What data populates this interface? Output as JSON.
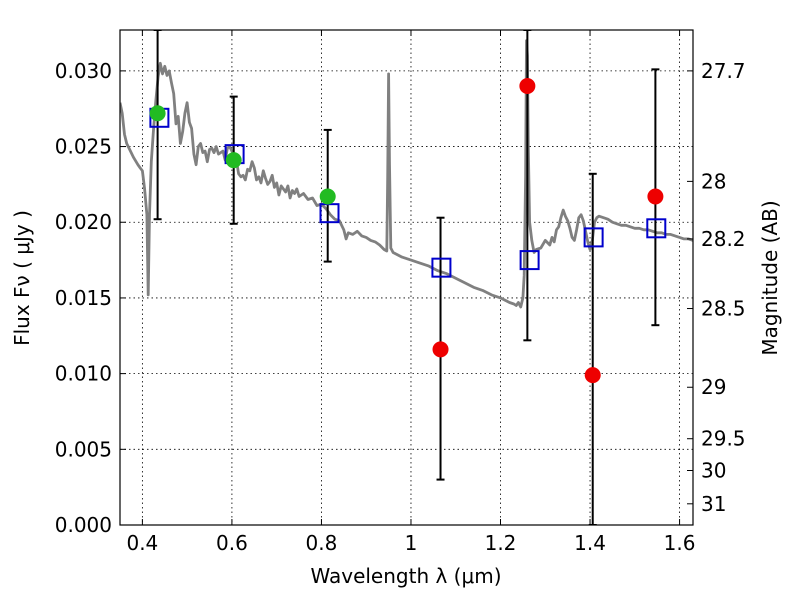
{
  "chart_data": {
    "type": "scatter",
    "title": "",
    "xlabel": "Wavelength  λ (μm)",
    "ylabel": "Flux  Fν  ( μJy )",
    "ylabel_right": "Magnitude (AB)",
    "xlim": [
      0.35,
      1.63
    ],
    "ylim": [
      0.0,
      0.0327
    ],
    "grid": true,
    "x_ticks": [
      0.4,
      0.6,
      0.8,
      1.0,
      1.2,
      1.4,
      1.6
    ],
    "x_tick_labels": [
      "0.4",
      "0.6",
      "0.8",
      "1",
      "1.2",
      "1.4",
      "1.6"
    ],
    "y_ticks": [
      0.0,
      0.005,
      0.01,
      0.015,
      0.02,
      0.025,
      0.03
    ],
    "y_tick_labels": [
      "0.000",
      "0.005",
      "0.010",
      "0.015",
      "0.020",
      "0.025",
      "0.030"
    ],
    "right_ticks": [
      {
        "label": "27.7",
        "flux": 0.03
      },
      {
        "label": "28",
        "flux": 0.0227
      },
      {
        "label": "28.2",
        "flux": 0.0189
      },
      {
        "label": "28.5",
        "flux": 0.0143
      },
      {
        "label": "29",
        "flux": 0.0091
      },
      {
        "label": "29.5",
        "flux": 0.0057
      },
      {
        "label": "30",
        "flux": 0.0036
      },
      {
        "label": "31",
        "flux": 0.0014
      }
    ],
    "series": [
      {
        "kind": "spectrum",
        "color": "#808080",
        "points": [
          [
            0.35,
            0.0279
          ],
          [
            0.355,
            0.0272
          ],
          [
            0.36,
            0.0258
          ],
          [
            0.365,
            0.0252
          ],
          [
            0.37,
            0.0249
          ],
          [
            0.38,
            0.0243
          ],
          [
            0.39,
            0.0238
          ],
          [
            0.395,
            0.0236
          ],
          [
            0.4,
            0.0234
          ],
          [
            0.405,
            0.0222
          ],
          [
            0.41,
            0.0205
          ],
          [
            0.413,
            0.0152
          ],
          [
            0.416,
            0.0205
          ],
          [
            0.42,
            0.024
          ],
          [
            0.425,
            0.0262
          ],
          [
            0.43,
            0.028
          ],
          [
            0.435,
            0.0296
          ],
          [
            0.44,
            0.0305
          ],
          [
            0.445,
            0.0298
          ],
          [
            0.45,
            0.0303
          ],
          [
            0.455,
            0.0297
          ],
          [
            0.46,
            0.03
          ],
          [
            0.465,
            0.0292
          ],
          [
            0.47,
            0.0285
          ],
          [
            0.475,
            0.0265
          ],
          [
            0.48,
            0.027
          ],
          [
            0.485,
            0.0252
          ],
          [
            0.49,
            0.026
          ],
          [
            0.495,
            0.0272
          ],
          [
            0.5,
            0.0279
          ],
          [
            0.505,
            0.0266
          ],
          [
            0.51,
            0.0262
          ],
          [
            0.515,
            0.0245
          ],
          [
            0.52,
            0.0238
          ],
          [
            0.525,
            0.025
          ],
          [
            0.53,
            0.0252
          ],
          [
            0.535,
            0.0246
          ],
          [
            0.54,
            0.0247
          ],
          [
            0.545,
            0.024
          ],
          [
            0.55,
            0.0248
          ],
          [
            0.555,
            0.0249
          ],
          [
            0.56,
            0.0246
          ],
          [
            0.565,
            0.025
          ],
          [
            0.57,
            0.0245
          ],
          [
            0.575,
            0.0246
          ],
          [
            0.58,
            0.0247
          ],
          [
            0.585,
            0.0241
          ],
          [
            0.59,
            0.0249
          ],
          [
            0.595,
            0.025
          ],
          [
            0.6,
            0.0247
          ],
          [
            0.605,
            0.0245
          ],
          [
            0.61,
            0.0241
          ],
          [
            0.615,
            0.0232
          ],
          [
            0.62,
            0.023
          ],
          [
            0.625,
            0.0231
          ],
          [
            0.63,
            0.0228
          ],
          [
            0.635,
            0.0235
          ],
          [
            0.64,
            0.0234
          ],
          [
            0.645,
            0.024
          ],
          [
            0.65,
            0.0236
          ],
          [
            0.655,
            0.0228
          ],
          [
            0.66,
            0.023
          ],
          [
            0.665,
            0.0226
          ],
          [
            0.67,
            0.0234
          ],
          [
            0.675,
            0.0229
          ],
          [
            0.68,
            0.0225
          ],
          [
            0.685,
            0.0227
          ],
          [
            0.69,
            0.0231
          ],
          [
            0.695,
            0.0223
          ],
          [
            0.7,
            0.0226
          ],
          [
            0.705,
            0.0218
          ],
          [
            0.71,
            0.0224
          ],
          [
            0.715,
            0.0222
          ],
          [
            0.72,
            0.022
          ],
          [
            0.725,
            0.0224
          ],
          [
            0.73,
            0.0216
          ],
          [
            0.735,
            0.0221
          ],
          [
            0.74,
            0.0219
          ],
          [
            0.745,
            0.0222
          ],
          [
            0.75,
            0.0217
          ],
          [
            0.76,
            0.0219
          ],
          [
            0.77,
            0.0215
          ],
          [
            0.78,
            0.0216
          ],
          [
            0.79,
            0.0211
          ],
          [
            0.8,
            0.0212
          ],
          [
            0.81,
            0.0209
          ],
          [
            0.82,
            0.0205
          ],
          [
            0.83,
            0.0202
          ],
          [
            0.84,
            0.0201
          ],
          [
            0.85,
            0.0195
          ],
          [
            0.855,
            0.0189
          ],
          [
            0.86,
            0.0193
          ],
          [
            0.87,
            0.0192
          ],
          [
            0.88,
            0.0194
          ],
          [
            0.89,
            0.0191
          ],
          [
            0.9,
            0.019
          ],
          [
            0.91,
            0.0188
          ],
          [
            0.92,
            0.0187
          ],
          [
            0.93,
            0.0185
          ],
          [
            0.94,
            0.0182
          ],
          [
            0.946,
            0.0181
          ],
          [
            0.948,
            0.023
          ],
          [
            0.95,
            0.0298
          ],
          [
            0.952,
            0.0238
          ],
          [
            0.955,
            0.0183
          ],
          [
            0.96,
            0.018
          ],
          [
            0.98,
            0.0177
          ],
          [
            1.0,
            0.0175
          ],
          [
            1.02,
            0.0173
          ],
          [
            1.04,
            0.0171
          ],
          [
            1.06,
            0.0168
          ],
          [
            1.08,
            0.0166
          ],
          [
            1.1,
            0.0163
          ],
          [
            1.12,
            0.016
          ],
          [
            1.14,
            0.0157
          ],
          [
            1.16,
            0.0155
          ],
          [
            1.18,
            0.0152
          ],
          [
            1.2,
            0.015
          ],
          [
            1.22,
            0.0147
          ],
          [
            1.23,
            0.0146
          ],
          [
            1.235,
            0.0145
          ],
          [
            1.24,
            0.0147
          ],
          [
            1.245,
            0.0144
          ],
          [
            1.25,
            0.015
          ],
          [
            1.253,
            0.0165
          ],
          [
            1.256,
            0.023
          ],
          [
            1.258,
            0.032
          ],
          [
            1.26,
            0.031
          ],
          [
            1.262,
            0.025
          ],
          [
            1.265,
            0.02
          ],
          [
            1.27,
            0.0188
          ],
          [
            1.275,
            0.018
          ],
          [
            1.28,
            0.0182
          ],
          [
            1.29,
            0.0183
          ],
          [
            1.3,
            0.0188
          ],
          [
            1.31,
            0.0185
          ],
          [
            1.315,
            0.019
          ],
          [
            1.32,
            0.0187
          ],
          [
            1.325,
            0.0195
          ],
          [
            1.33,
            0.0197
          ],
          [
            1.335,
            0.0203
          ],
          [
            1.34,
            0.0208
          ],
          [
            1.345,
            0.0204
          ],
          [
            1.35,
            0.0201
          ],
          [
            1.355,
            0.0196
          ],
          [
            1.36,
            0.019
          ],
          [
            1.365,
            0.0188
          ],
          [
            1.37,
            0.0195
          ],
          [
            1.375,
            0.0203
          ],
          [
            1.38,
            0.0205
          ],
          [
            1.385,
            0.0201
          ],
          [
            1.39,
            0.0194
          ],
          [
            1.395,
            0.0187
          ],
          [
            1.4,
            0.0182
          ],
          [
            1.405,
            0.0188
          ],
          [
            1.41,
            0.02
          ],
          [
            1.415,
            0.0203
          ],
          [
            1.42,
            0.0204
          ],
          [
            1.43,
            0.0203
          ],
          [
            1.44,
            0.0202
          ],
          [
            1.45,
            0.02
          ],
          [
            1.46,
            0.0199
          ],
          [
            1.47,
            0.0198
          ],
          [
            1.48,
            0.0198
          ],
          [
            1.49,
            0.0197
          ],
          [
            1.5,
            0.0196
          ],
          [
            1.51,
            0.0196
          ],
          [
            1.52,
            0.0195
          ],
          [
            1.53,
            0.0195
          ],
          [
            1.54,
            0.0194
          ],
          [
            1.55,
            0.0193
          ],
          [
            1.56,
            0.0193
          ],
          [
            1.57,
            0.0192
          ],
          [
            1.58,
            0.0192
          ],
          [
            1.59,
            0.0191
          ],
          [
            1.6,
            0.019
          ],
          [
            1.61,
            0.0189
          ],
          [
            1.62,
            0.0189
          ],
          [
            1.63,
            0.0188
          ]
        ]
      },
      {
        "kind": "model",
        "color": "#0000cc",
        "points": [
          [
            0.438,
            0.0269
          ],
          [
            0.606,
            0.0245
          ],
          [
            0.818,
            0.0206
          ],
          [
            1.068,
            0.017
          ],
          [
            1.265,
            0.0175
          ],
          [
            1.408,
            0.019
          ],
          [
            1.548,
            0.0196
          ]
        ]
      },
      {
        "kind": "detections",
        "color": "#22bb22",
        "points": [
          [
            0.434,
            0.0272
          ],
          [
            0.604,
            0.0241
          ],
          [
            0.814,
            0.0217
          ]
        ]
      },
      {
        "kind": "upper",
        "color": "#ee0000",
        "points": [
          [
            1.066,
            0.0116
          ],
          [
            1.26,
            0.029
          ],
          [
            1.406,
            0.0099
          ],
          [
            1.546,
            0.0217
          ]
        ]
      }
    ],
    "errorbars": [
      {
        "x": 0.434,
        "low": 0.0202,
        "high": 0.0327
      },
      {
        "x": 0.604,
        "low": 0.0199,
        "high": 0.0283
      },
      {
        "x": 0.814,
        "low": 0.0174,
        "high": 0.0261
      },
      {
        "x": 1.066,
        "low": 0.003,
        "high": 0.0203
      },
      {
        "x": 1.26,
        "low": 0.0122,
        "high": 0.0327
      },
      {
        "x": 1.406,
        "low": 0.0,
        "high": 0.0232
      },
      {
        "x": 1.546,
        "low": 0.0132,
        "high": 0.0301
      }
    ]
  }
}
